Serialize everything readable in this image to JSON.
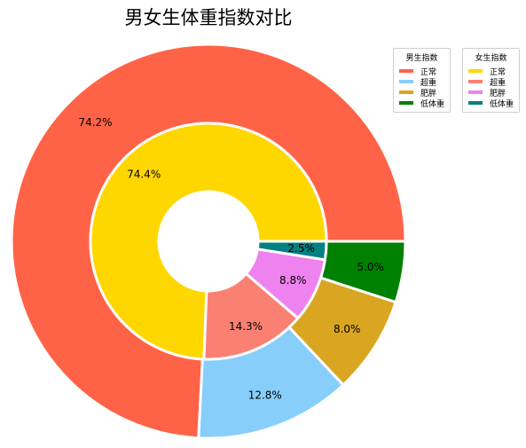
{
  "chart_data": {
    "type": "pie",
    "title": "男女生体重指数对比",
    "categories": [
      "正常",
      "超重",
      "肥胖",
      "低体重"
    ],
    "series": [
      {
        "name": "男生指数",
        "ring": "outer",
        "values": [
          74.2,
          12.8,
          8.0,
          5.0
        ],
        "labels": [
          "74.2%",
          "12.8%",
          "8.0%",
          "5.0%"
        ],
        "colors": [
          "#FF6347",
          "#87CEFA",
          "#DAA520",
          "#008000"
        ]
      },
      {
        "name": "女生指数",
        "ring": "inner",
        "values": [
          74.4,
          14.3,
          8.8,
          2.5
        ],
        "labels": [
          "74.4%",
          "14.3%",
          "8.8%",
          "2.5%"
        ],
        "colors": [
          "#FFD700",
          "#FA8072",
          "#EE82EE",
          "#008080"
        ]
      }
    ],
    "legend_placement": "top-right"
  }
}
